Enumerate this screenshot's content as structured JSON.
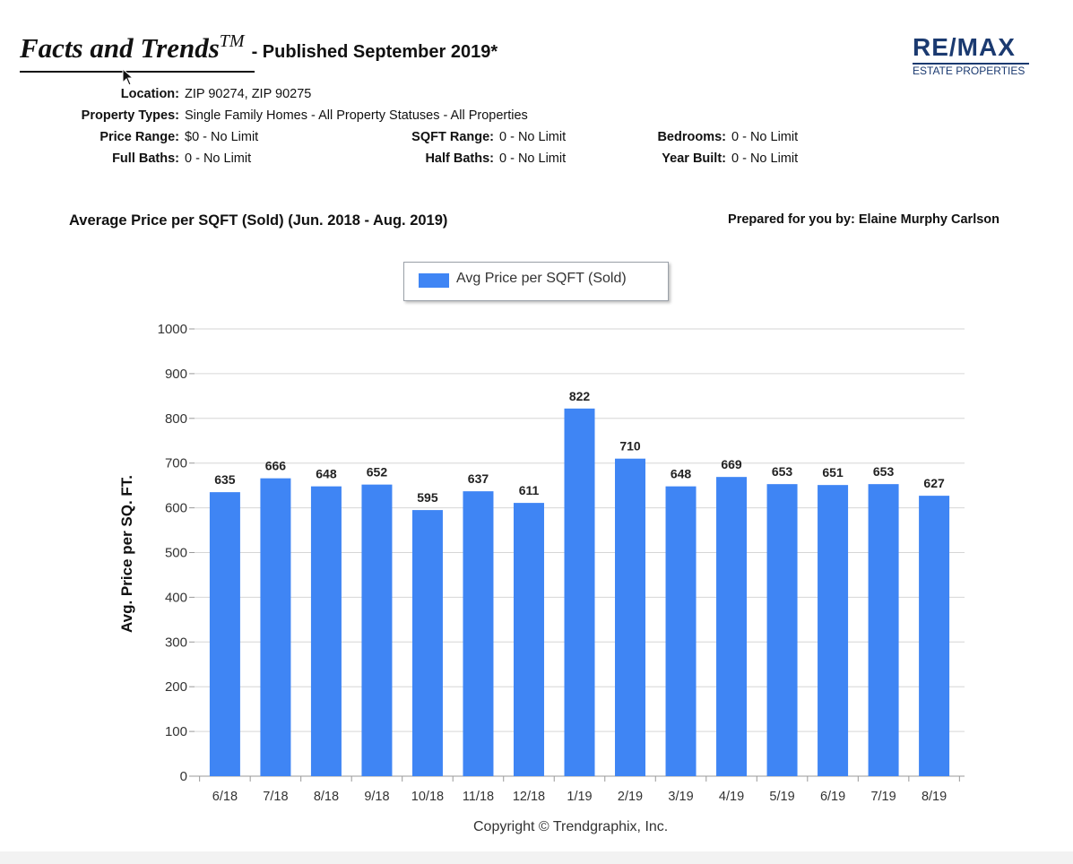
{
  "header": {
    "title": "Facts and Trends",
    "trademark": "TM",
    "published": "- Published September 2019*"
  },
  "logo": {
    "main": "RE/MAX",
    "sub": "ESTATE PROPERTIES",
    "color": "#1b3a70"
  },
  "criteria": {
    "location_label": "Location:",
    "location_value": "ZIP 90274, ZIP 90275",
    "property_types_label": "Property Types:",
    "property_types_value": "Single Family Homes - All Property Statuses - All Properties",
    "price_range_label": "Price Range:",
    "price_range_value": "$0 - No Limit",
    "sqft_range_label": "SQFT Range:",
    "sqft_range_value": "0 - No Limit",
    "bedrooms_label": "Bedrooms:",
    "bedrooms_value": "0 - No Limit",
    "full_baths_label": "Full Baths:",
    "full_baths_value": "0 - No Limit",
    "half_baths_label": "Half Baths:",
    "half_baths_value": "0 - No Limit",
    "year_built_label": "Year Built:",
    "year_built_value": "0 - No Limit"
  },
  "report": {
    "subtitle": "Average Price per SQFT (Sold) (Jun. 2018 - Aug. 2019)",
    "prepared_for": "Prepared for you by: Elaine Murphy Carlson"
  },
  "footer": {
    "copyright": "Copyright © Trendgraphix, Inc."
  },
  "chart_data": {
    "type": "bar",
    "categories": [
      "6/18",
      "7/18",
      "8/18",
      "9/18",
      "10/18",
      "11/18",
      "12/18",
      "1/19",
      "2/19",
      "3/19",
      "4/19",
      "5/19",
      "6/19",
      "7/19",
      "8/19"
    ],
    "series": [
      {
        "name": "Avg Price per SQFT (Sold)",
        "values": [
          635,
          666,
          648,
          652,
          595,
          637,
          611,
          822,
          710,
          648,
          669,
          653,
          651,
          653,
          627
        ],
        "color": "#3f85f4"
      }
    ],
    "ylabel": "Avg. Price per SQ. FT.",
    "xlabel": "",
    "ylim": [
      0,
      1000
    ],
    "yticks": [
      0,
      100,
      200,
      300,
      400,
      500,
      600,
      700,
      800,
      900,
      1000
    ],
    "grid": true,
    "legend_position": "top-center",
    "data_labels": true
  }
}
